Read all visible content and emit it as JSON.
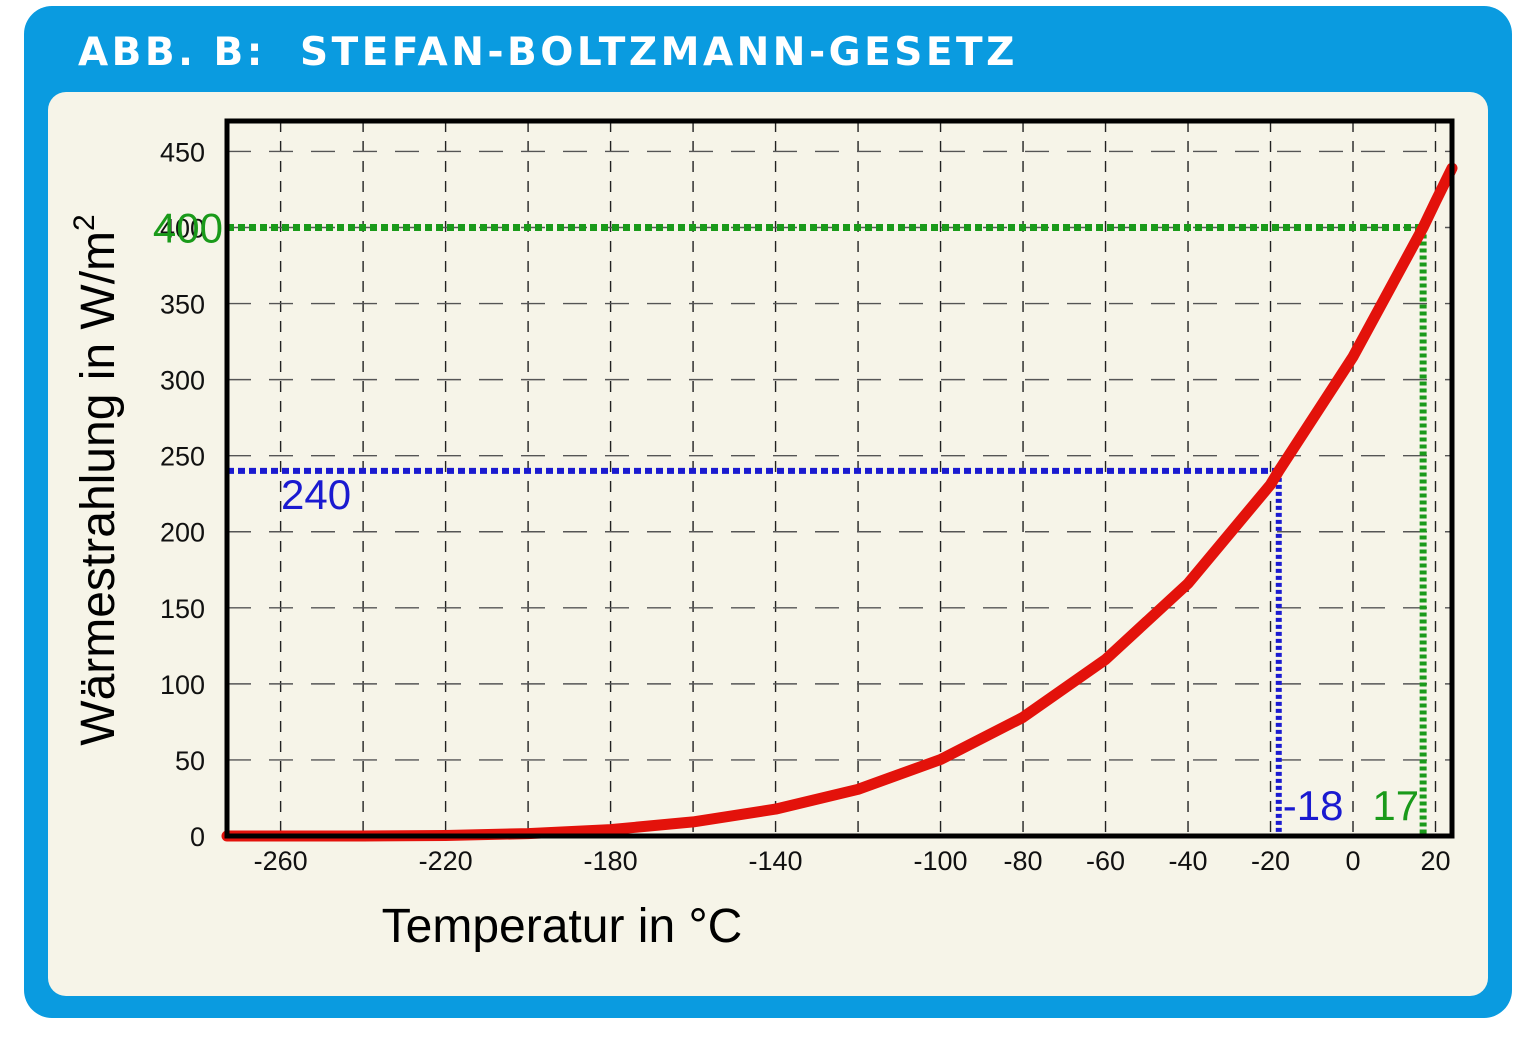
{
  "figure": {
    "title": "ABB. B:  STEFAN-BOLTZMANN-GESETZ"
  },
  "colors": {
    "frame": "#0a9be0",
    "panel": "#f6f4e8",
    "curve": "#e3120b",
    "reference_green": "#1a9a1a",
    "reference_blue": "#1a1ad0"
  },
  "chart_data": {
    "type": "line",
    "title": "",
    "xlabel": "Temperatur in °C",
    "ylabel": "Wärmestrahlung in W/m",
    "ylabel_superscript": "2",
    "xlim": [
      -273,
      24
    ],
    "ylim": [
      0,
      470
    ],
    "grid": true,
    "x_ticks": [
      -260,
      -220,
      -180,
      -140,
      -100,
      -80,
      -60,
      -40,
      -20,
      0,
      20
    ],
    "x_grid": [
      -260,
      -240,
      -220,
      -200,
      -180,
      -160,
      -140,
      -120,
      -100,
      -80,
      -60,
      -40,
      -20,
      0,
      20
    ],
    "y_ticks": [
      0,
      50,
      100,
      150,
      200,
      250,
      300,
      350,
      400,
      450
    ],
    "series": [
      {
        "law": "Stefan-Boltzmann, sigma * (T + 273.15)^4",
        "x": [
          -273,
          -260,
          -240,
          -220,
          -200,
          -180,
          -160,
          -140,
          -120,
          -100,
          -80,
          -60,
          -40,
          -20,
          -18,
          0,
          17,
          20,
          24
        ],
        "y": [
          0,
          0,
          0,
          0.3,
          1.6,
          4.2,
          9.3,
          17.7,
          30.7,
          50.3,
          78.0,
          116,
          166,
          231,
          240,
          315,
          400,
          417,
          439
        ]
      }
    ],
    "annotations": [
      {
        "label": "400",
        "x": 17,
        "y": 400,
        "color": "green"
      },
      {
        "label": "17",
        "x": 17,
        "y": 400,
        "color": "green"
      },
      {
        "label": "240",
        "x": -18,
        "y": 240,
        "color": "blue"
      },
      {
        "label": "-18",
        "x": -18,
        "y": 240,
        "color": "blue"
      }
    ]
  }
}
